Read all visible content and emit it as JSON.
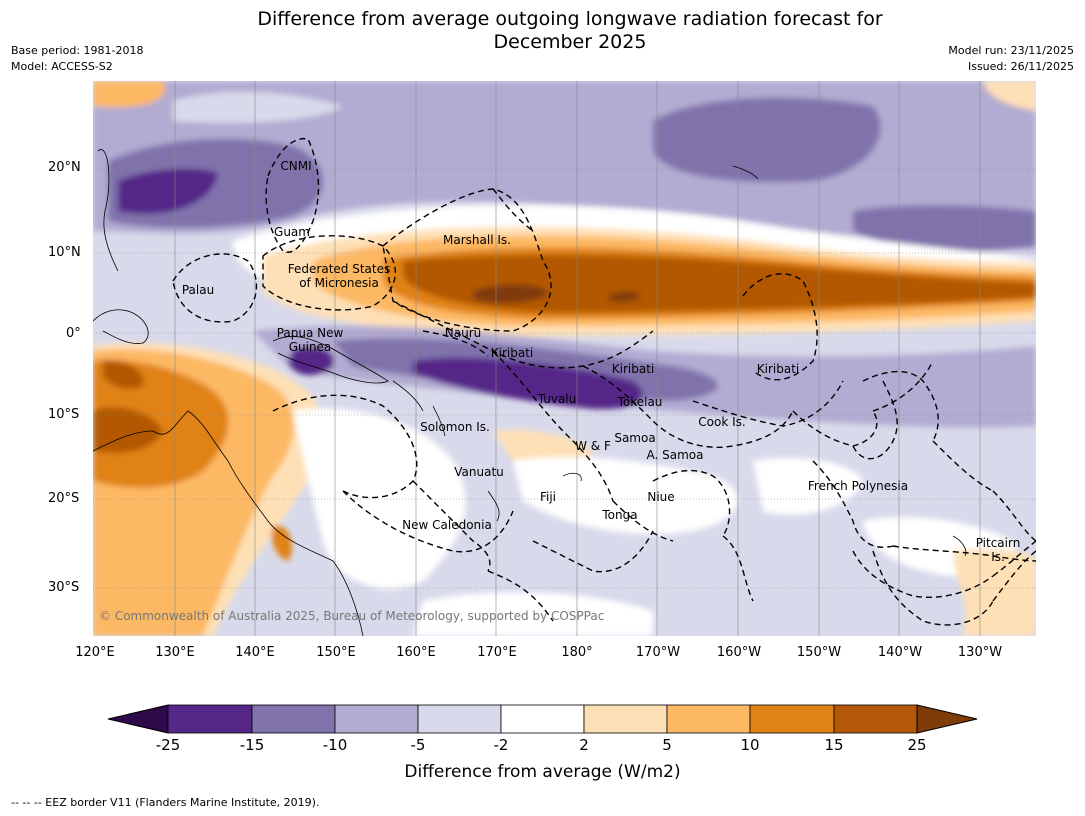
{
  "title": {
    "line1": "Difference from average outgoing longwave radiation forecast for",
    "line2": "December 2025"
  },
  "meta": {
    "base_period": "Base period: 1981-2018",
    "model": "Model: ACCESS-S2",
    "model_run": "Model run: 23/11/2025",
    "issued": "Issued: 26/11/2025"
  },
  "axes": {
    "lat": [
      "20°N",
      "10°N",
      "0°",
      "10°S",
      "20°S",
      "30°S"
    ],
    "lon": [
      "120°E",
      "130°E",
      "140°E",
      "150°E",
      "160°E",
      "170°E",
      "180°",
      "170°W",
      "160°W",
      "150°W",
      "140°W",
      "130°W"
    ]
  },
  "places": {
    "cnmi": "CNMI",
    "guam": "Guam",
    "marshall": "Marshall Is.",
    "fsm_1": "Federated States",
    "fsm_2": "of Micronesia",
    "palau": "Palau",
    "png_1": "Papua New",
    "png_2": "Guinea",
    "nauru": "Nauru",
    "kiribati_w": "Kiribati",
    "kiribati_c": "Kiribati",
    "kiribati_e": "Kiribati",
    "tuvalu": "Tuvalu",
    "tokelau": "Tokelau",
    "solomon": "Solomon Is.",
    "wf": "W & F",
    "samoa": "Samoa",
    "asamoa": "A. Samoa",
    "cook": "Cook Is.",
    "vanuatu": "Vanuatu",
    "fiji": "Fiji",
    "niue": "Niue",
    "tonga": "Tonga",
    "frpoly": "French Polynesia",
    "newcal": "New Caledonia",
    "pitcairn_1": "Pitcairn",
    "pitcairn_2": "Is."
  },
  "copyright": "© Commonwealth of Australia 2025, Bureau of Meteorology, supported by COSPPac",
  "colorbar": {
    "label": "Difference from average (W/m2)",
    "ticks": [
      "-25",
      "-15",
      "-10",
      "-5",
      "-2",
      "2",
      "5",
      "10",
      "15",
      "25"
    ],
    "colors": {
      "under": "#2d0a4a",
      "c1": "#542788",
      "c2": "#8073ac",
      "c3": "#b2abd2",
      "c4": "#d8daeb",
      "c5": "#ffffff",
      "c6": "#fee0b6",
      "c7": "#fdb863",
      "c8": "#e08214",
      "c9": "#b35806",
      "over": "#7f3b08"
    }
  },
  "eez_note": "--  --  -- EEZ border V11 (Flanders Marine Institute, 2019)."
}
